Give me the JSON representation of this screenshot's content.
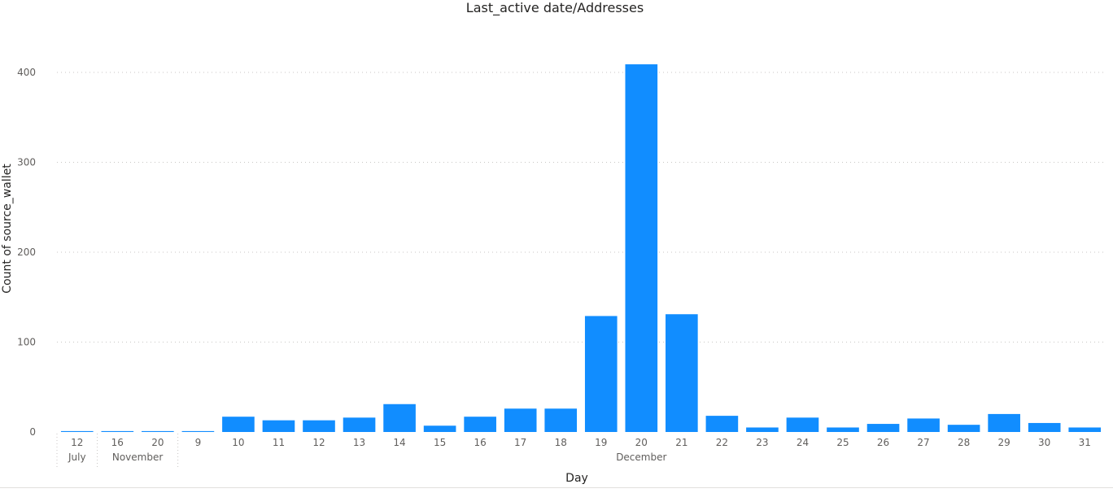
{
  "chart_data": {
    "type": "bar",
    "title": "Last_active date/Addresses",
    "xlabel": "Day",
    "ylabel": "Count of source_wallet",
    "ylim": [
      0,
      400
    ],
    "yticks": [
      0,
      100,
      200,
      300,
      400
    ],
    "grid": "horizontal dotted",
    "bar_color": "#118DFF",
    "categories": [
      "12",
      "16",
      "20",
      "9",
      "10",
      "11",
      "12",
      "13",
      "14",
      "15",
      "16",
      "17",
      "18",
      "19",
      "20",
      "21",
      "22",
      "23",
      "24",
      "25",
      "26",
      "27",
      "28",
      "29",
      "30",
      "31"
    ],
    "groups": [
      {
        "label": "July",
        "count": 1
      },
      {
        "label": "November",
        "count": 2
      },
      {
        "label": "December",
        "count": 23
      }
    ],
    "values": [
      1,
      1,
      1,
      1,
      17,
      13,
      13,
      16,
      31,
      7,
      17,
      26,
      26,
      129,
      409,
      131,
      18,
      5,
      16,
      5,
      9,
      15,
      8,
      20,
      10,
      5
    ]
  }
}
